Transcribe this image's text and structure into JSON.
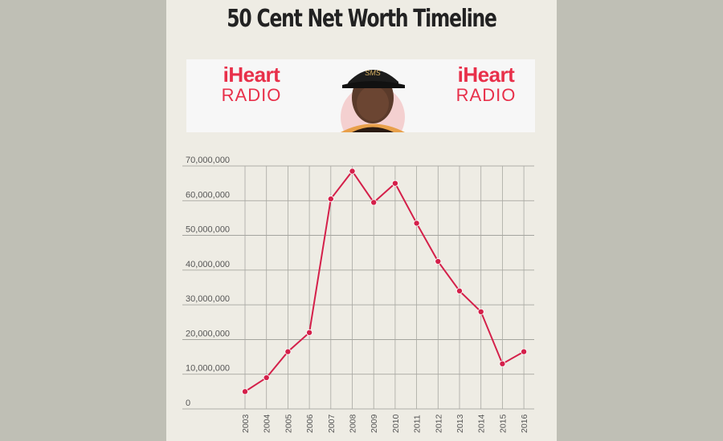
{
  "page": {
    "title": "50 Cent Net Worth Timeline",
    "background": "#bfbfb5",
    "panel_color": "#eeece4"
  },
  "banner": {
    "logo_left": {
      "line1": "iHeart",
      "line2": "RADIO"
    },
    "logo_right": {
      "line1": "iHeart",
      "line2": "RADIO"
    },
    "logo_color": "#e8304a",
    "cap_text": "SMS"
  },
  "chart_data": {
    "type": "line",
    "title": "",
    "xlabel": "",
    "ylabel": "",
    "x": [
      "2003",
      "2004",
      "2005",
      "2006",
      "2007",
      "2008",
      "2009",
      "2010",
      "2011",
      "2012",
      "2013",
      "2014",
      "2015",
      "2016"
    ],
    "series": [
      {
        "values": [
          5000000,
          9000000,
          16500000,
          22000000,
          60500000,
          68500000,
          59500000,
          65000000,
          53500000,
          42500000,
          34000000,
          28000000,
          13000000,
          16500000
        ],
        "color": "#d4204a"
      }
    ],
    "ylim": [
      0,
      70000000
    ],
    "yticks": [
      0,
      10000000,
      20000000,
      30000000,
      40000000,
      50000000,
      60000000,
      70000000
    ],
    "ytick_labels": [
      "0",
      "10,000,000",
      "20,000,000",
      "30,000,000",
      "40,000,000",
      "50,000,000",
      "60,000,000",
      "70,000,000"
    ],
    "grid": true,
    "legend": "none"
  }
}
